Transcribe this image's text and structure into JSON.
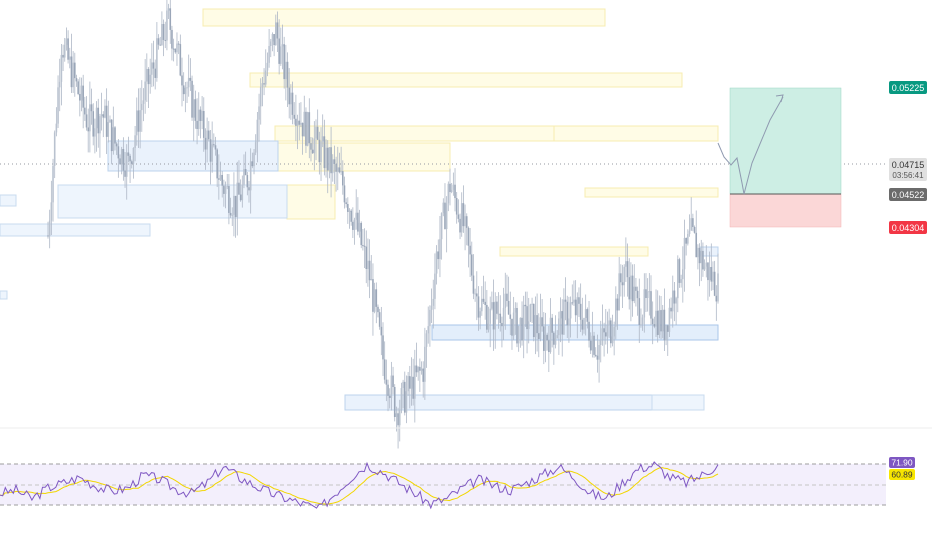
{
  "chart_data": {
    "type": "candlestick",
    "title": "",
    "xlabel": "",
    "ylabel": "",
    "price_axis": {
      "current_price": "0.04715",
      "countdown": "03:56:41",
      "entry_price": "0.04522",
      "take_profit": "0.05225",
      "stop_loss": "0.04304"
    },
    "price_range_estimate": [
      0.0365,
      0.0575
    ],
    "candles_close_approx": [
      0.046,
      0.0555,
      0.0535,
      0.0515,
      0.052,
      0.0505,
      0.0495,
      0.0525,
      0.0545,
      0.0565,
      0.054,
      0.052,
      0.0505,
      0.0485,
      0.0475,
      0.049,
      0.0535,
      0.056,
      0.053,
      0.0515,
      0.0505,
      0.0495,
      0.0485,
      0.0465,
      0.044,
      0.04,
      0.0375,
      0.0385,
      0.0395,
      0.045,
      0.0485,
      0.0465,
      0.043,
      0.042,
      0.0425,
      0.0415,
      0.042,
      0.041,
      0.0415,
      0.0425,
      0.042,
      0.0405,
      0.0415,
      0.0445,
      0.0425,
      0.0425,
      0.0415,
      0.044,
      0.046,
      0.0445,
      0.0435
    ],
    "zones_supply": [
      "yellow rectangle",
      "yellow rectangle",
      "yellow rectangle",
      "yellow rectangle",
      "yellow rectangle",
      "yellow rectangle"
    ],
    "zones_demand": [
      "blue rectangle",
      "blue rectangle",
      "blue rectangle",
      "blue rectangle",
      "blue rectangle"
    ],
    "position": {
      "type": "long",
      "target_color": "#26a69a",
      "stop_color": "#ef5350"
    },
    "indicator": {
      "name": "RSI",
      "values_approx": [
        45,
        48,
        40,
        50,
        55,
        60,
        52,
        47,
        50,
        62,
        58,
        49,
        45,
        55,
        70,
        60,
        52,
        45,
        40,
        35,
        30,
        45,
        60,
        72,
        65,
        55,
        45,
        35,
        40,
        50,
        58,
        52,
        48,
        55,
        62,
        70,
        60,
        45,
        40,
        55,
        68,
        72,
        60,
        55,
        62,
        71.9
      ],
      "rsi_value": "71.90",
      "ma_value": "60.89",
      "rsi_color": "#7e57c2",
      "ma_color": "#f7e600",
      "band_upper": 70,
      "band_lower": 30
    }
  },
  "colors": {
    "candle": "#aeb7c6",
    "supply_zone": "#fffbe0",
    "supply_border": "#f5e6a0",
    "demand_zone": "#e8f1fb",
    "demand_border": "#b6cde8",
    "last_price_tag": "#6b6b6b",
    "take_profit_tag": "#089981",
    "stop_loss_tag": "#f23645"
  }
}
